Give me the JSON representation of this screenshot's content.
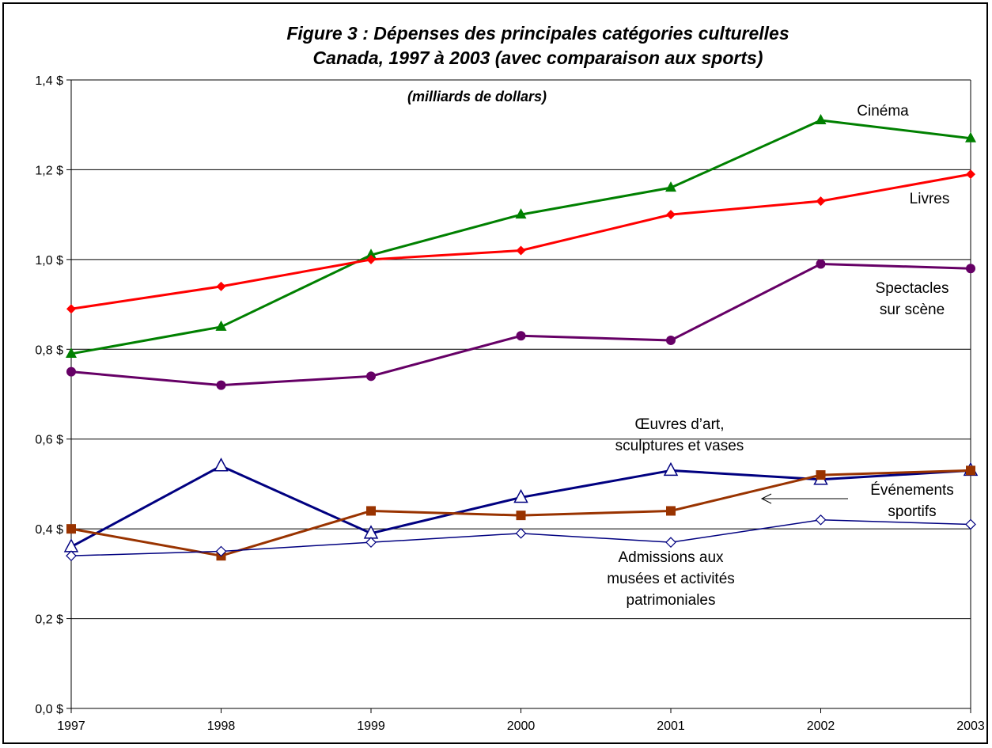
{
  "chart_data": {
    "type": "line",
    "title_line1": "Figure 3 : Dépenses des principales catégories culturelles",
    "title_line2": "Canada, 1997 à 2003 (avec comparaison aux sports)",
    "subtitle": "(milliards de dollars)",
    "x": [
      "1997",
      "1998",
      "1999",
      "2000",
      "2001",
      "2002",
      "2003"
    ],
    "y_ticks": [
      "0,0 $",
      "0,2 $",
      "0,4 $",
      "0,6 $",
      "0,8 $",
      "1,0 $",
      "1,2 $",
      "1,4 $"
    ],
    "ylim": [
      0,
      1.4
    ],
    "grid": true,
    "series": [
      {
        "name": "Cinéma",
        "label_lines": [
          "Cinéma"
        ],
        "color": "#008000",
        "marker": "triangle-filled",
        "stroke": 3,
        "values": [
          0.79,
          0.85,
          1.01,
          1.1,
          1.16,
          1.31,
          1.27
        ]
      },
      {
        "name": "Livres",
        "label_lines": [
          "Livres"
        ],
        "color": "#ff0000",
        "marker": "diamond-filled",
        "stroke": 3,
        "values": [
          0.89,
          0.94,
          1.0,
          1.02,
          1.1,
          1.13,
          1.19
        ]
      },
      {
        "name": "Spectacles sur scène",
        "label_lines": [
          "Spectacles",
          "sur scène"
        ],
        "color": "#660066",
        "marker": "circle-filled",
        "stroke": 3,
        "values": [
          0.75,
          0.72,
          0.74,
          0.83,
          0.82,
          0.99,
          0.98
        ]
      },
      {
        "name": "Œuvres d’art, sculptures et vases",
        "label_lines": [
          "Œuvres d’art,",
          "sculptures et vases"
        ],
        "color": "#000080",
        "marker": "triangle-open",
        "stroke": 3,
        "values": [
          0.36,
          0.54,
          0.39,
          0.47,
          0.53,
          0.51,
          0.53
        ]
      },
      {
        "name": "Événements sportifs",
        "label_lines": [
          "Événements",
          "sportifs"
        ],
        "color": "#993300",
        "marker": "square-filled",
        "stroke": 3,
        "values": [
          0.4,
          0.34,
          0.44,
          0.43,
          0.44,
          0.52,
          0.53
        ]
      },
      {
        "name": "Admissions aux musées et activités patrimoniales",
        "label_lines": [
          "Admissions aux",
          "musées et activités",
          "patrimoniales"
        ],
        "color": "#000080",
        "marker": "diamond-open",
        "stroke": 1.5,
        "values": [
          0.34,
          0.35,
          0.37,
          0.39,
          0.37,
          0.42,
          0.41
        ]
      }
    ]
  }
}
